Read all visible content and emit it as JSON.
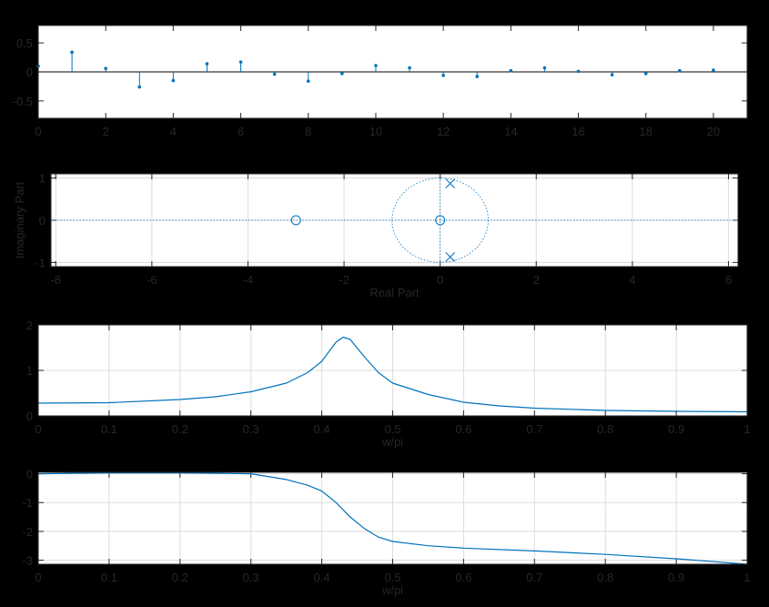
{
  "colors": {
    "background": "#000000",
    "axes_bg": "#ffffff",
    "series": "#0072BD",
    "text": "#262626",
    "grid": "#dcdcdc"
  },
  "chart_data": [
    {
      "type": "stem",
      "xlim": [
        0,
        21
      ],
      "ylim": [
        -0.8,
        0.8
      ],
      "xticks": [
        0,
        2,
        4,
        6,
        8,
        10,
        12,
        14,
        16,
        18,
        20
      ],
      "yticks": [
        -0.5,
        0,
        0.5
      ],
      "ytick_labels": [
        "-0.5",
        "0",
        "0.5"
      ],
      "grid": false,
      "xlabel": "",
      "ylabel": "",
      "x": [
        0,
        1,
        2,
        3,
        4,
        5,
        6,
        7,
        8,
        9,
        10,
        11,
        12,
        13,
        14,
        15,
        16,
        17,
        18,
        19,
        20
      ],
      "values": [
        0.1,
        0.34,
        0.06,
        -0.26,
        -0.15,
        0.14,
        0.17,
        -0.04,
        -0.16,
        -0.03,
        0.11,
        0.07,
        -0.06,
        -0.08,
        0.02,
        0.07,
        0.01,
        -0.05,
        -0.03,
        0.02,
        0.03
      ]
    },
    {
      "type": "pole-zero",
      "xlim": [
        -8.1,
        6.2
      ],
      "ylim": [
        -1.1,
        1.1
      ],
      "xticks": [
        -8,
        -6,
        -4,
        -2,
        0,
        2,
        4,
        6
      ],
      "yticks": [
        -1,
        0,
        1
      ],
      "grid": true,
      "xlabel": "Real Part",
      "ylabel": "Imaginary Part",
      "zeros": [
        [
          -3,
          0
        ],
        [
          0,
          0
        ]
      ],
      "poles": [
        [
          0.21,
          0.87
        ],
        [
          0.21,
          -0.87
        ]
      ],
      "unit_circle": true
    },
    {
      "type": "line",
      "xlim": [
        0,
        1
      ],
      "ylim": [
        0,
        2
      ],
      "xticks": [
        0,
        0.1,
        0.2,
        0.3,
        0.4,
        0.5,
        0.6,
        0.7,
        0.8,
        0.9,
        1
      ],
      "yticks": [
        0,
        1,
        2
      ],
      "grid": true,
      "xlabel": "w/pi",
      "ylabel": "",
      "x": [
        0,
        0.1,
        0.2,
        0.25,
        0.3,
        0.35,
        0.38,
        0.4,
        0.42,
        0.43,
        0.44,
        0.46,
        0.48,
        0.5,
        0.55,
        0.6,
        0.65,
        0.7,
        0.8,
        0.9,
        1
      ],
      "y": [
        0.28,
        0.29,
        0.36,
        0.42,
        0.53,
        0.72,
        0.95,
        1.2,
        1.62,
        1.73,
        1.68,
        1.3,
        0.95,
        0.72,
        0.47,
        0.3,
        0.22,
        0.17,
        0.12,
        0.1,
        0.09
      ]
    },
    {
      "type": "line",
      "xlim": [
        0,
        1
      ],
      "ylim": [
        -3.14,
        0.05
      ],
      "xticks": [
        0,
        0.1,
        0.2,
        0.3,
        0.4,
        0.5,
        0.6,
        0.7,
        0.8,
        0.9,
        1
      ],
      "yticks": [
        -3,
        -2,
        -1,
        0
      ],
      "grid": true,
      "xlabel": "w/pi",
      "ylabel": "",
      "x": [
        0,
        0.1,
        0.2,
        0.3,
        0.35,
        0.38,
        0.4,
        0.42,
        0.44,
        0.46,
        0.48,
        0.5,
        0.55,
        0.6,
        0.7,
        0.8,
        0.9,
        1
      ],
      "y": [
        0,
        0.03,
        0.03,
        0,
        -0.2,
        -0.4,
        -0.6,
        -1.0,
        -1.5,
        -1.9,
        -2.2,
        -2.35,
        -2.5,
        -2.58,
        -2.68,
        -2.8,
        -2.95,
        -3.14
      ]
    }
  ]
}
